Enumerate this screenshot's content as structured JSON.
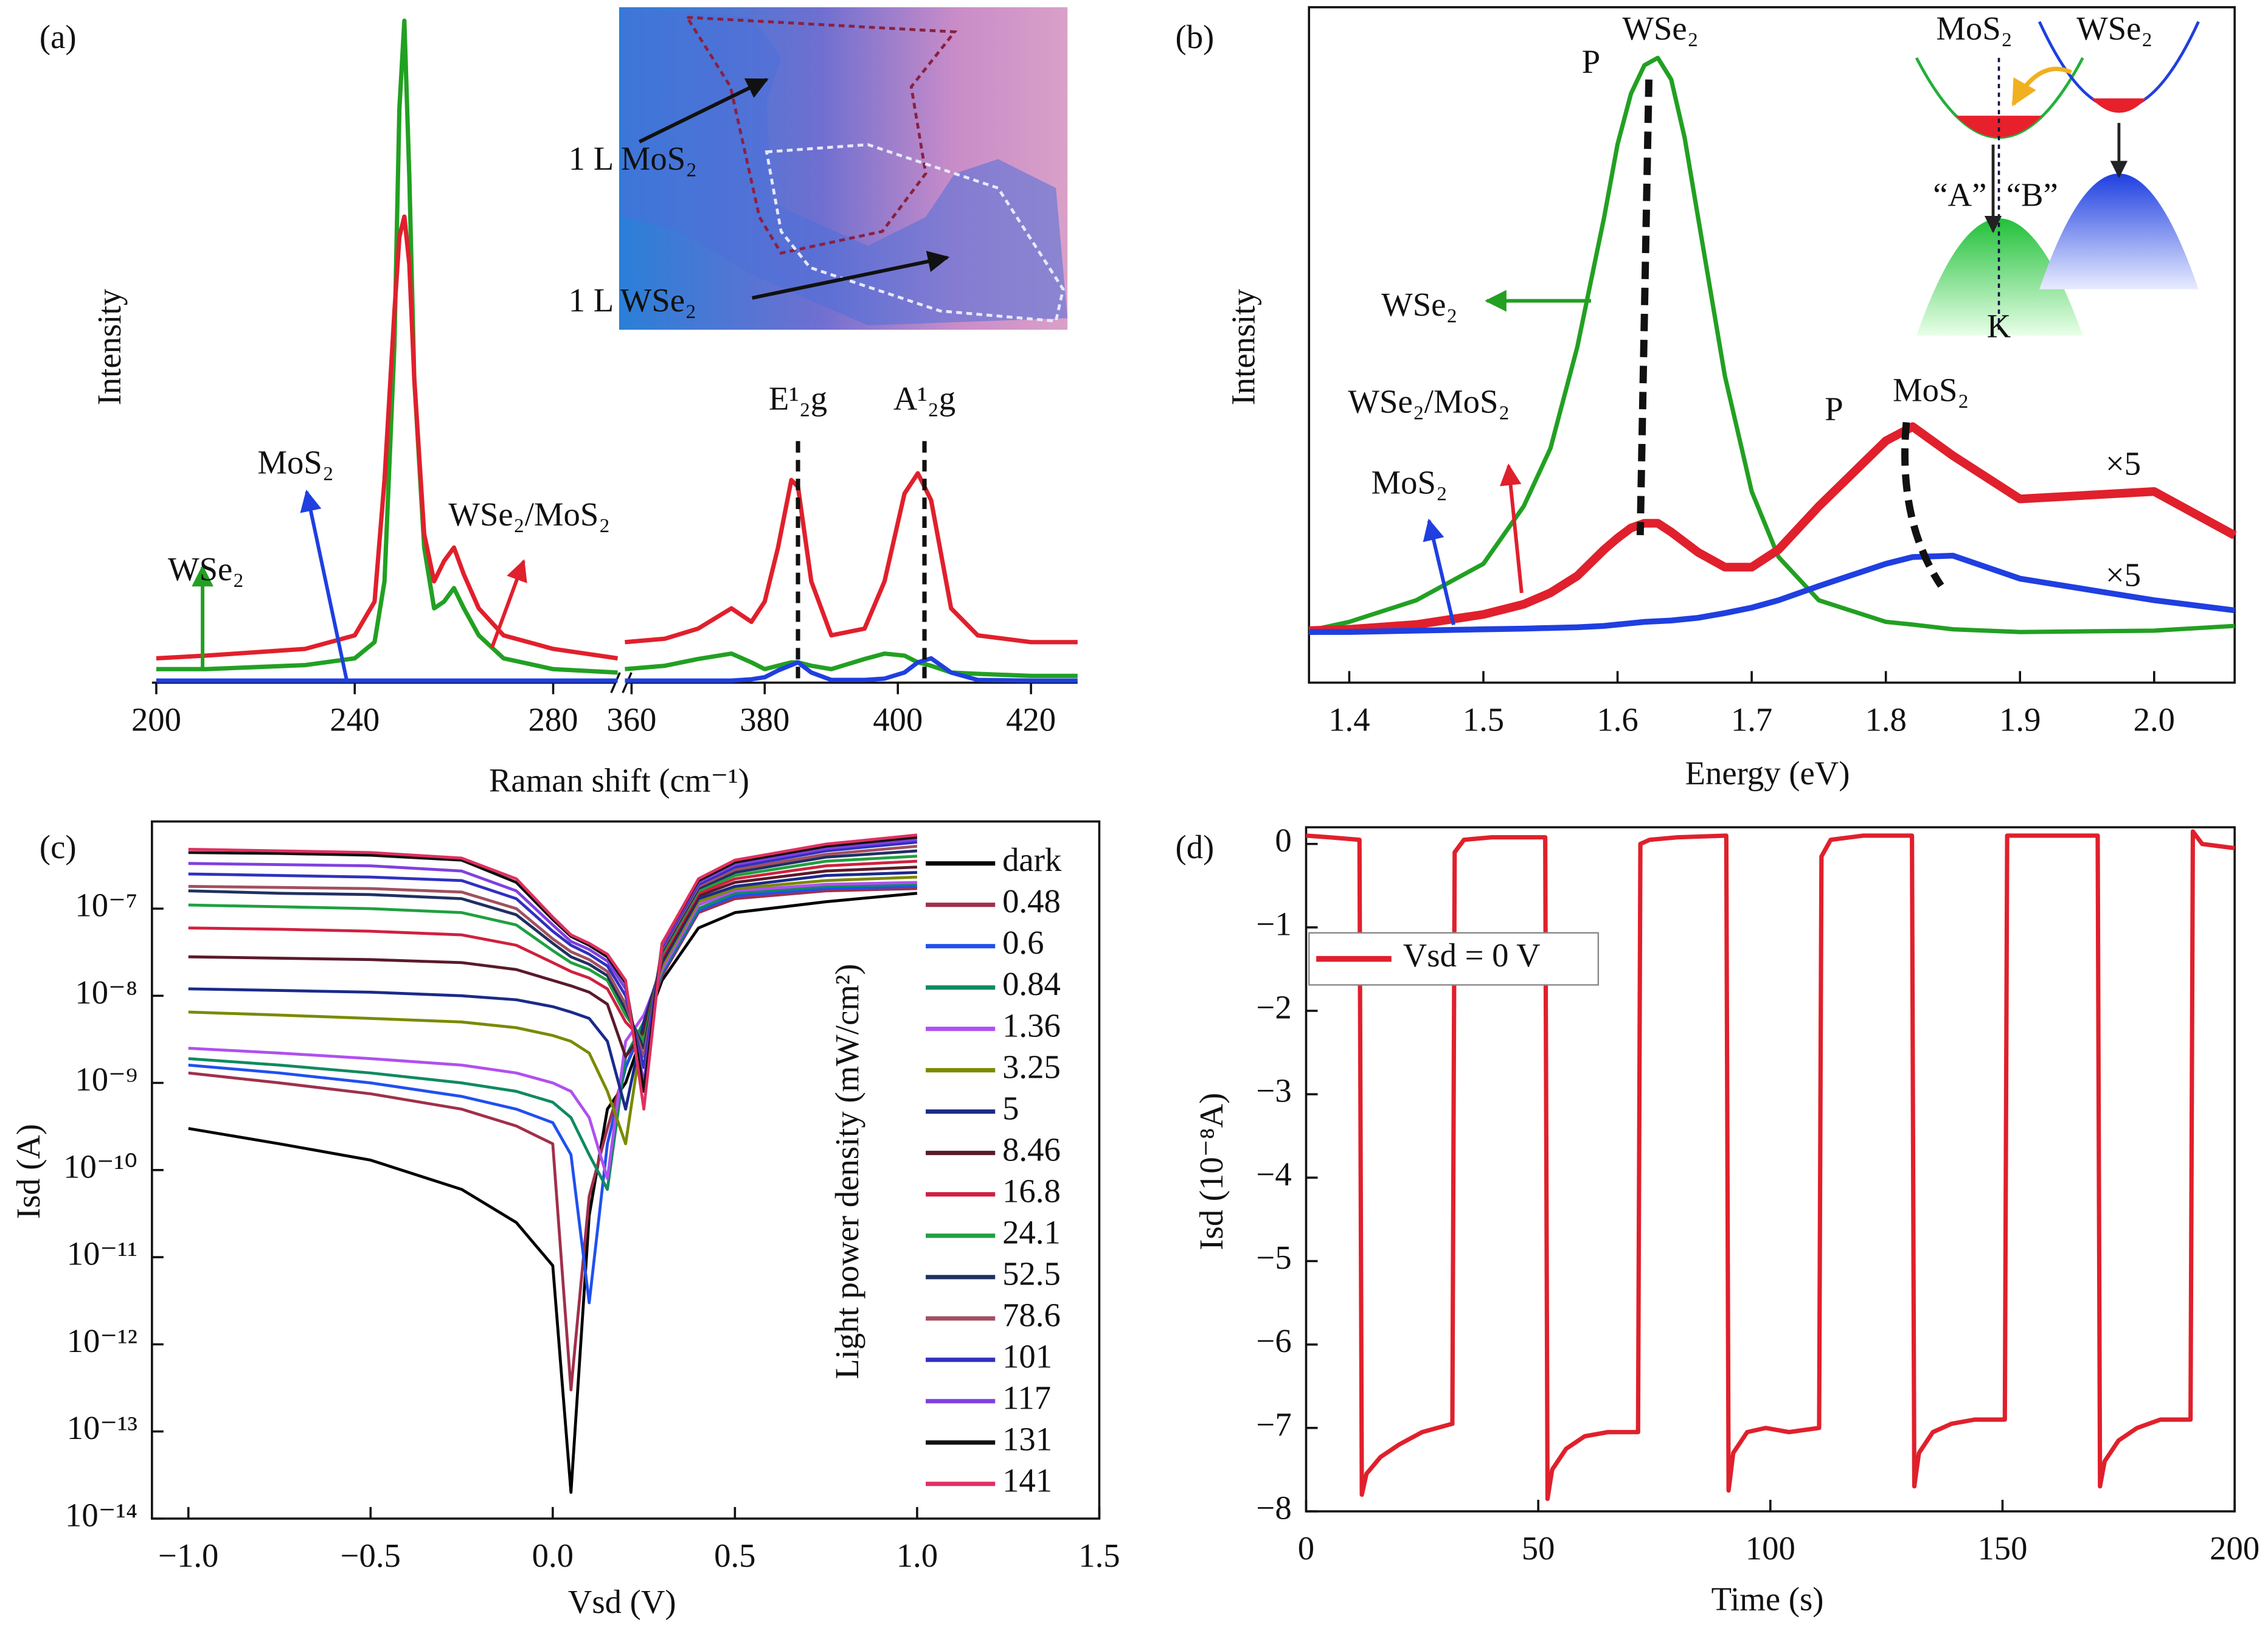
{
  "chart_data": [
    {
      "type": "line",
      "label": "(a)",
      "x_label": "Raman shift (cm⁻¹)",
      "y_label": "Intensity",
      "xlim_segments": [
        [
          200,
          293
        ],
        [
          359,
          427
        ]
      ],
      "ylim": [
        0,
        100
      ],
      "xticks": [
        200,
        240,
        280,
        360,
        380,
        400,
        420
      ],
      "x": [
        200,
        210,
        220,
        230,
        240,
        244,
        246,
        248,
        249,
        250,
        251,
        252,
        254,
        256,
        258,
        260,
        262,
        265,
        270,
        280,
        293,
        359,
        365,
        370,
        375,
        378,
        380,
        382,
        384,
        385,
        387,
        390,
        395,
        398,
        401,
        403,
        405,
        408,
        412,
        420,
        427
      ],
      "series": [
        {
          "name": "WSe₂",
          "color": "#22a022",
          "values": [
            2,
            2,
            2.3,
            2.6,
            3.6,
            6,
            15,
            50,
            85,
            98,
            75,
            45,
            20,
            11,
            12,
            14,
            11,
            7,
            3.6,
            2,
            1.5,
            2,
            2.5,
            3.5,
            4.3,
            3,
            2,
            2.5,
            3,
            3,
            2.5,
            2,
            3.5,
            4.3,
            4,
            3,
            2.5,
            1.5,
            1.3,
            1,
            1
          ]
        },
        {
          "name": "MoS₂",
          "color": "#1f3fe0",
          "values": [
            0.3,
            0.3,
            0.3,
            0.3,
            0.3,
            0.3,
            0.3,
            0.3,
            0.3,
            0.3,
            0.3,
            0.3,
            0.3,
            0.3,
            0.3,
            0.3,
            0.3,
            0.3,
            0.3,
            0.3,
            0.3,
            0.3,
            0.3,
            0.3,
            0.3,
            0.5,
            0.8,
            1.8,
            2.6,
            3,
            1.5,
            0.4,
            0.4,
            0.6,
            1.5,
            3,
            3.6,
            1.5,
            0.4,
            0.3,
            0.3
          ]
        },
        {
          "name": "WSe₂/MoS₂",
          "color": "#e0202c",
          "values": [
            3.6,
            4,
            4.5,
            5,
            7,
            12,
            30,
            55,
            66,
            69,
            62,
            45,
            22,
            15,
            18,
            20,
            16,
            11,
            7,
            5,
            3.6,
            6,
            6.5,
            8,
            11,
            9,
            12,
            20,
            30,
            29,
            15,
            7,
            8,
            15,
            28,
            31,
            27,
            11,
            7,
            6,
            6
          ]
        }
      ],
      "inset_labels": [
        "1 L MoS₂",
        "1 L WSe₂"
      ],
      "annotations": [
        {
          "text": "E¹₂g",
          "x": 385
        },
        {
          "text": "A¹₂g",
          "x": 404
        }
      ]
    },
    {
      "type": "line",
      "label": "(b)",
      "x_label": "Energy (eV)",
      "y_label": "Intensity",
      "xlim": [
        1.37,
        2.06
      ],
      "ylim": [
        0,
        100
      ],
      "xticks": [
        1.4,
        1.5,
        1.6,
        1.7,
        1.8,
        1.9,
        {
          "value": 2.0,
          "label": "2.0"
        }
      ],
      "x": [
        1.37,
        1.4,
        1.45,
        1.5,
        1.53,
        1.55,
        1.57,
        1.59,
        1.6,
        1.61,
        1.62,
        1.63,
        1.64,
        1.65,
        1.66,
        1.68,
        1.7,
        1.72,
        1.75,
        1.8,
        1.82,
        1.85,
        1.9,
        2.0,
        2.06
      ],
      "series": [
        {
          "name": "WSe₂",
          "color": "#22a022",
          "values": [
            7.7,
            9,
            12.2,
            17.6,
            26.1,
            34.7,
            49.7,
            68.9,
            79.7,
            87.2,
            91.4,
            92.5,
            89.3,
            80.7,
            68.9,
            45.4,
            28.3,
            18.6,
            12.2,
            9,
            8.6,
            7.9,
            7.5,
            7.7,
            8.4
          ]
        },
        {
          "name": "WSe₂/MoS₂",
          "color": "#e0202c",
          "values": [
            7.7,
            7.9,
            8.6,
            10.1,
            11.6,
            13.3,
            15.8,
            19.7,
            21.4,
            22.9,
            23.6,
            23.6,
            22.3,
            20.8,
            19.3,
            17.1,
            17.1,
            19.7,
            26.1,
            35.8,
            37.9,
            33.6,
            27.2,
            28.3,
            21.8
          ]
        },
        {
          "name": "MoS₂",
          "color": "#1f3fe0",
          "values": [
            7.5,
            7.5,
            7.7,
            7.9,
            8,
            8.1,
            8.2,
            8.4,
            8.6,
            8.8,
            9,
            9.1,
            9.2,
            9.4,
            9.6,
            10.3,
            11.1,
            12.2,
            14.3,
            17.6,
            18.6,
            18.8,
            15.4,
            12.2,
            10.7
          ]
        }
      ],
      "annotations": [
        "P",
        "WSe₂",
        "P",
        "MoS₂",
        "×5",
        "×5"
      ],
      "inset_labels": [
        "MoS₂",
        "WSe₂",
        "“A”",
        "“B”",
        "K"
      ]
    },
    {
      "type": "line",
      "label": "(c)",
      "x_label": "Vsd (V)",
      "y_label": "Isd (A)",
      "log": true,
      "xlim": [
        -1.1,
        1.5
      ],
      "ylim": [
        1e-14,
        1e-06
      ],
      "xticks": [
        {
          "value": -1.0,
          "label": "−1.0"
        },
        {
          "value": -0.5,
          "label": "−0.5"
        },
        {
          "value": 0,
          "label": "0.0"
        },
        0.5,
        {
          "value": 1.0,
          "label": "1.0"
        },
        1.5
      ],
      "yticks": [
        {
          "value": 1e-14,
          "label": "10⁻¹⁴"
        },
        {
          "value": 1e-13,
          "label": "10⁻¹³"
        },
        {
          "value": 1e-12,
          "label": "10⁻¹²"
        },
        {
          "value": 1e-11,
          "label": "10⁻¹¹"
        },
        {
          "value": 1e-10,
          "label": "10⁻¹⁰"
        },
        {
          "value": 1e-09,
          "label": "10⁻⁹"
        },
        {
          "value": 1e-08,
          "label": "10⁻⁸"
        },
        {
          "value": 1e-07,
          "label": "10⁻⁷"
        }
      ],
      "legend_title": "Light power density (mW/cm²)",
      "x": [
        -1,
        -0.75,
        -0.5,
        -0.25,
        -0.1,
        0,
        0.05,
        0.1,
        0.15,
        0.2,
        0.25,
        0.3,
        0.4,
        0.5,
        0.75,
        1.0
      ],
      "series": [
        {
          "name": "dark",
          "color": "#000000",
          "values": [
            3e-10,
            2e-10,
            1.3e-10,
            6e-11,
            2.5e-11,
            8e-12,
            2e-14,
            3e-11,
            5e-10,
            1e-09,
            4e-09,
            1.5e-08,
            6e-08,
            9e-08,
            1.2e-07,
            1.5e-07
          ]
        },
        {
          "name": "0.48",
          "color": "#a0304a",
          "values": [
            1.3e-09,
            1e-09,
            7.5e-10,
            5e-10,
            3.2e-10,
            2e-10,
            3e-13,
            5e-11,
            3e-10,
            1.5e-09,
            4.5e-09,
            1.7e-08,
            9e-08,
            1.3e-07,
            1.6e-07,
            1.7e-07
          ]
        },
        {
          "name": "0.6",
          "color": "#2050f0",
          "values": [
            1.6e-09,
            1.3e-09,
            1e-09,
            7e-10,
            5e-10,
            3.5e-10,
            1.5e-10,
            3e-12,
            2e-10,
            1.5e-09,
            5e-09,
            1.8e-08,
            9.5e-08,
            1.4e-07,
            1.7e-07,
            1.8e-07
          ]
        },
        {
          "name": "0.84",
          "color": "#108a60",
          "values": [
            1.9e-09,
            1.6e-09,
            1.3e-09,
            1e-09,
            8e-10,
            6e-10,
            4e-10,
            1.5e-10,
            6e-11,
            2e-09,
            5e-09,
            1.9e-08,
            1e-07,
            1.5e-07,
            1.8e-07,
            1.9e-07
          ]
        },
        {
          "name": "1.36",
          "color": "#b050f0",
          "values": [
            2.5e-09,
            2.2e-09,
            1.9e-09,
            1.6e-09,
            1.3e-09,
            1e-09,
            8e-10,
            4e-10,
            8e-11,
            3e-09,
            6e-09,
            2e-08,
            1.1e-07,
            1.6e-07,
            1.9e-07,
            2e-07
          ]
        },
        {
          "name": "3.25",
          "color": "#7a8a00",
          "values": [
            6.5e-09,
            6e-09,
            5.5e-09,
            5e-09,
            4.3e-09,
            3.5e-09,
            3e-09,
            2.2e-09,
            8e-10,
            2e-10,
            5e-09,
            2.2e-08,
            1.2e-07,
            1.7e-07,
            2.1e-07,
            2.3e-07
          ]
        },
        {
          "name": "5",
          "color": "#1a2a8a",
          "values": [
            1.2e-08,
            1.15e-08,
            1.1e-08,
            1e-08,
            9e-09,
            7.5e-09,
            6.5e-09,
            5.5e-09,
            3e-09,
            5e-10,
            5e-09,
            2.4e-08,
            1.3e-07,
            1.8e-07,
            2.4e-07,
            2.6e-07
          ]
        },
        {
          "name": "8.46",
          "color": "#5a1a2a",
          "values": [
            2.8e-08,
            2.7e-08,
            2.6e-08,
            2.4e-08,
            2e-08,
            1.5e-08,
            1.3e-08,
            1.1e-08,
            8e-09,
            2e-09,
            4e-09,
            2.6e-08,
            1.4e-07,
            2e-07,
            2.7e-07,
            3e-07
          ]
        },
        {
          "name": "16.8",
          "color": "#d02040",
          "values": [
            6e-08,
            5.8e-08,
            5.5e-08,
            5e-08,
            3.8e-08,
            2.4e-08,
            1.9e-08,
            1.6e-08,
            1.2e-08,
            5e-09,
            3e-09,
            2.8e-08,
            1.5e-07,
            2.2e-07,
            3.1e-07,
            3.5e-07
          ]
        },
        {
          "name": "24.1",
          "color": "#20a040",
          "values": [
            1.1e-07,
            1.05e-07,
            1e-07,
            9e-08,
            6.5e-08,
            3.3e-08,
            2.4e-08,
            2e-08,
            1.5e-08,
            6e-09,
            3e-09,
            3e-08,
            1.6e-07,
            2.4e-07,
            3.5e-07,
            4e-07
          ]
        },
        {
          "name": "52.5",
          "color": "#203060",
          "values": [
            1.6e-07,
            1.5e-07,
            1.45e-07,
            1.3e-07,
            8.5e-08,
            4e-08,
            2.8e-08,
            2.3e-08,
            1.7e-08,
            7e-09,
            2.5e-09,
            3.2e-08,
            1.7e-07,
            2.6e-07,
            3.9e-07,
            4.6e-07
          ]
        },
        {
          "name": "78.6",
          "color": "#a05060",
          "values": [
            1.8e-07,
            1.75e-07,
            1.7e-07,
            1.55e-07,
            1e-07,
            4.5e-08,
            3.2e-08,
            2.6e-08,
            1.9e-08,
            8e-09,
            2e-09,
            3.4e-08,
            1.8e-07,
            2.8e-07,
            4.2e-07,
            5.2e-07
          ]
        },
        {
          "name": "101",
          "color": "#3030c0",
          "values": [
            2.5e-07,
            2.4e-07,
            2.3e-07,
            2.1e-07,
            1.3e-07,
            5.5e-08,
            3.8e-08,
            3e-08,
            2.2e-08,
            1e-08,
            1.5e-09,
            3.6e-08,
            1.9e-07,
            3e-07,
            4.6e-07,
            5.8e-07
          ]
        },
        {
          "name": "117",
          "color": "#8040e0",
          "values": [
            3.3e-07,
            3.2e-07,
            3.1e-07,
            2.7e-07,
            1.6e-07,
            6.5e-08,
            4.2e-08,
            3.4e-08,
            2.5e-08,
            1.2e-08,
            1e-09,
            3.8e-08,
            2e-07,
            3.2e-07,
            4.9e-07,
            6.2e-07
          ]
        },
        {
          "name": "131",
          "color": "#111111",
          "values": [
            4.4e-07,
            4.3e-07,
            4.1e-07,
            3.6e-07,
            2e-07,
            7.5e-08,
            4.8e-08,
            3.8e-08,
            2.8e-08,
            1.4e-08,
            8e-10,
            4e-08,
            2.1e-07,
            3.4e-07,
            5.2e-07,
            6.6e-07
          ]
        },
        {
          "name": "141",
          "color": "#e03060",
          "values": [
            4.8e-07,
            4.6e-07,
            4.4e-07,
            3.8e-07,
            2.2e-07,
            8e-08,
            5e-08,
            4e-08,
            3e-08,
            1.5e-08,
            5e-10,
            4e-08,
            2.2e-07,
            3.6e-07,
            5.5e-07,
            7e-07
          ]
        }
      ]
    },
    {
      "type": "line",
      "label": "(d)",
      "x_label": "Time (s)",
      "y_label": "Isd (10⁻⁸A)",
      "xlim": [
        0,
        200
      ],
      "ylim": [
        -8,
        0.2
      ],
      "xticks": [
        0,
        50,
        100,
        150,
        200
      ],
      "yticks": [
        0,
        {
          "value": -1,
          "label": "−1"
        },
        {
          "value": -2,
          "label": "−2"
        },
        {
          "value": -3,
          "label": "−3"
        },
        {
          "value": -4,
          "label": "−4"
        },
        {
          "value": -5,
          "label": "−5"
        },
        {
          "value": -6,
          "label": "−6"
        },
        {
          "value": -7,
          "label": "−7"
        },
        {
          "value": -8,
          "label": "−8"
        }
      ],
      "x": [
        0,
        5,
        11.5,
        12,
        13,
        16,
        20,
        25,
        31.5,
        32,
        34,
        40,
        51.5,
        52,
        53,
        56,
        60,
        65,
        71.5,
        72,
        74,
        80,
        90.5,
        91,
        92,
        95,
        99,
        104,
        110.5,
        111,
        113,
        120,
        130.5,
        131,
        132,
        135,
        139,
        144,
        150.5,
        151,
        153,
        160,
        170.5,
        171,
        172,
        175,
        179,
        184,
        190.5,
        191,
        193,
        200
      ],
      "series": [
        {
          "name": "Vsd = 0 V",
          "color": "#e0202c",
          "values": [
            0.1,
            0.08,
            0.05,
            -7.8,
            -7.55,
            -7.35,
            -7.2,
            -7.05,
            -6.95,
            -0.1,
            0.05,
            0.08,
            0.08,
            -7.85,
            -7.5,
            -7.25,
            -7.1,
            -7.05,
            -7.05,
            0.0,
            0.05,
            0.08,
            0.1,
            -7.75,
            -7.3,
            -7.05,
            -7.0,
            -7.05,
            -7.0,
            -0.15,
            0.05,
            0.1,
            0.1,
            -7.7,
            -7.3,
            -7.05,
            -6.95,
            -6.9,
            -6.9,
            0.1,
            0.1,
            0.1,
            0.1,
            -7.7,
            -7.4,
            -7.15,
            -7.0,
            -6.9,
            -6.9,
            0.15,
            0.0,
            -0.05
          ]
        }
      ]
    }
  ]
}
